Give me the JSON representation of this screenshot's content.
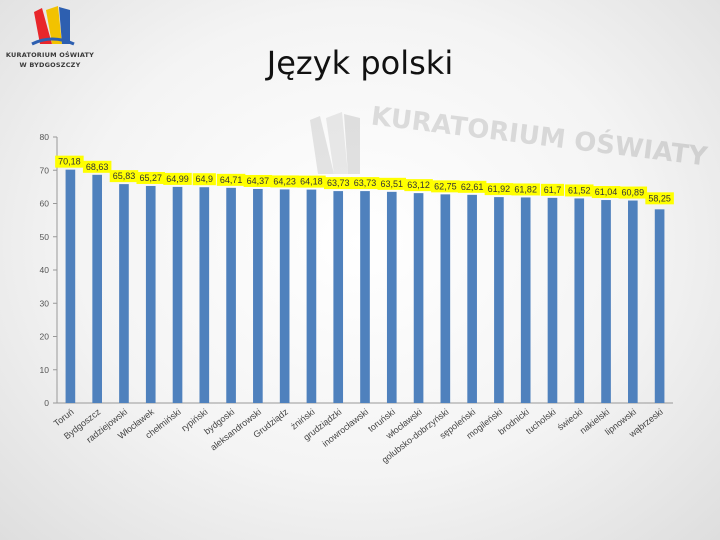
{
  "slide": {
    "title": "Język polski",
    "logo_line1": "KURATORIUM OŚWIATY",
    "logo_line2": "W BYDGOSZCZY",
    "watermark_text": "KURATORIUM OŚWIATY"
  },
  "colors": {
    "bar": "#4f81bd",
    "label_bg": "#ffff00",
    "axis_text": "#555555",
    "gridline": "#c8c8c8"
  },
  "chart_data": {
    "type": "bar",
    "title": "",
    "xlabel": "",
    "ylabel": "",
    "ylim": [
      0,
      80
    ],
    "yticks": [
      0,
      10,
      20,
      30,
      40,
      50,
      60,
      70,
      80
    ],
    "grid": false,
    "legend": "none",
    "categories": [
      "Toruń",
      "Bydgoszcz",
      "radziejowski",
      "Włocławek",
      "chełmiński",
      "rypiński",
      "bydgoski",
      "aleksandrowski",
      "Grudziądz",
      "żniński",
      "grudziądzki",
      "inowrocławski",
      "toruński",
      "włocławski",
      "golubsko-dobrzyński",
      "sępoleński",
      "mogileński",
      "brodnicki",
      "tucholski",
      "świecki",
      "nakielski",
      "lipnowski",
      "wąbrzeski"
    ],
    "values": [
      70.18,
      68.63,
      65.83,
      65.27,
      64.99,
      64.9,
      64.71,
      64.37,
      64.23,
      64.18,
      63.73,
      63.73,
      63.51,
      63.12,
      62.75,
      62.61,
      61.92,
      61.82,
      61.7,
      61.52,
      61.04,
      60.89,
      58.25
    ],
    "value_labels": [
      "70,18",
      "68,63",
      "65,83",
      "65,27",
      "64,99",
      "64,9",
      "64,71",
      "64,37",
      "64,23",
      "64,18",
      "63,73",
      "63,73",
      "63,51",
      "63,12",
      "62,75",
      "62,61",
      "61,92",
      "61,82",
      "61,7",
      "61,52",
      "61,04",
      "60,89",
      "58,25"
    ]
  }
}
